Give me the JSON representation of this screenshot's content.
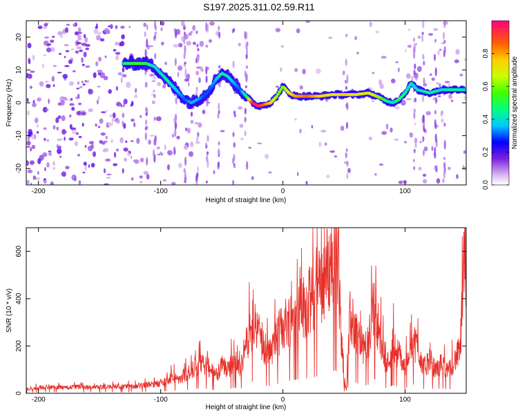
{
  "title": "S197.2025.311.02.59.R11",
  "chart_data": [
    {
      "type": "heatmap",
      "title": "S197.2025.311.02.59.R11",
      "xlabel": "Height of straight line (km)",
      "ylabel": "Frequency (Hz)",
      "xlim": [
        -210,
        150
      ],
      "ylim": [
        -25,
        25
      ],
      "xticks": [
        -200,
        -100,
        0,
        100
      ],
      "yticks": [
        -20,
        -10,
        0,
        10,
        20
      ],
      "colorbar": {
        "label": "Normalized spectral amplitude",
        "range": [
          0.0,
          1.0
        ],
        "ticks": [
          "0.0",
          "0.2",
          "0.4",
          "0.6",
          "0.8"
        ]
      },
      "ridge": {
        "x": [
          -130,
          -120,
          -112,
          -105,
          -100,
          -95,
          -90,
          -85,
          -80,
          -75,
          -70,
          -65,
          -60,
          -55,
          -50,
          -45,
          -40,
          -35,
          -30,
          -25,
          -20,
          -15,
          -10,
          -5,
          0,
          5,
          10,
          20,
          30,
          40,
          50,
          60,
          70,
          80,
          85,
          90,
          95,
          100,
          105,
          110,
          120,
          130,
          140,
          150
        ],
        "freq": [
          12,
          12,
          12,
          11,
          9,
          7,
          5,
          3,
          1,
          0,
          1,
          2,
          4,
          7,
          9,
          8,
          6,
          4,
          2,
          0,
          -1,
          -0.5,
          0,
          2,
          5,
          3,
          2,
          2,
          2,
          2.5,
          2.5,
          2.5,
          3,
          1.5,
          0.5,
          0,
          1,
          3,
          6,
          4,
          3,
          4,
          4,
          4
        ],
        "amplitude": [
          0.45,
          0.55,
          0.5,
          0.4,
          0.4,
          0.45,
          0.4,
          0.35,
          0.3,
          0.35,
          0.35,
          0.3,
          0.3,
          0.35,
          0.45,
          0.4,
          0.35,
          0.3,
          0.45,
          0.95,
          0.95,
          0.85,
          0.75,
          0.6,
          0.6,
          0.7,
          0.8,
          0.85,
          0.75,
          0.7,
          0.75,
          0.7,
          0.7,
          0.6,
          0.45,
          0.4,
          0.5,
          0.45,
          0.4,
          0.4,
          0.45,
          0.4,
          0.45,
          0.4
        ]
      }
    },
    {
      "type": "line",
      "xlabel": "Height of straight line (km)",
      "ylabel": "SNR (10 * v/v)",
      "xlim": [
        -210,
        150
      ],
      "ylim": [
        0,
        700
      ],
      "xticks": [
        -200,
        -100,
        0,
        100
      ],
      "yticks": [
        0,
        200,
        400,
        600
      ],
      "series": [
        {
          "name": "SNR",
          "color": "#e8302a",
          "x": [
            -210,
            -200,
            -190,
            -180,
            -170,
            -160,
            -150,
            -140,
            -130,
            -120,
            -110,
            -100,
            -95,
            -90,
            -85,
            -80,
            -75,
            -70,
            -65,
            -60,
            -55,
            -50,
            -45,
            -40,
            -35,
            -30,
            -25,
            -20,
            -15,
            -10,
            -5,
            0,
            5,
            10,
            15,
            20,
            25,
            30,
            35,
            40,
            43,
            45,
            48,
            50,
            52,
            55,
            60,
            65,
            70,
            75,
            80,
            85,
            90,
            95,
            100,
            105,
            110,
            115,
            120,
            125,
            130,
            135,
            140,
            145,
            148,
            150
          ],
          "y": [
            20,
            25,
            30,
            25,
            30,
            28,
            30,
            30,
            30,
            35,
            40,
            45,
            60,
            80,
            60,
            90,
            100,
            130,
            140,
            120,
            80,
            130,
            110,
            160,
            110,
            240,
            330,
            280,
            220,
            200,
            260,
            320,
            350,
            380,
            400,
            420,
            450,
            500,
            560,
            620,
            650,
            600,
            250,
            60,
            20,
            350,
            300,
            200,
            240,
            410,
            250,
            130,
            230,
            180,
            120,
            260,
            220,
            120,
            150,
            110,
            140,
            100,
            150,
            200,
            550,
            600
          ]
        }
      ]
    }
  ]
}
